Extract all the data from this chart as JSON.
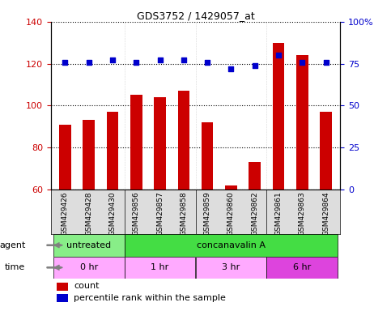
{
  "title": "GDS3752 / 1429057_at",
  "samples": [
    "GSM429426",
    "GSM429428",
    "GSM429430",
    "GSM429856",
    "GSM429857",
    "GSM429858",
    "GSM429859",
    "GSM429860",
    "GSM429862",
    "GSM429861",
    "GSM429863",
    "GSM429864"
  ],
  "counts": [
    91,
    93,
    97,
    105,
    104,
    107,
    92,
    62,
    73,
    130,
    124,
    97
  ],
  "percentiles": [
    76,
    76,
    77,
    76,
    77,
    77,
    76,
    72,
    74,
    80,
    76,
    76
  ],
  "bar_color": "#cc0000",
  "dot_color": "#0000cc",
  "ylim_left": [
    60,
    140
  ],
  "ylim_right": [
    0,
    100
  ],
  "yticks_left": [
    60,
    80,
    100,
    120,
    140
  ],
  "yticks_right": [
    0,
    25,
    50,
    75,
    100
  ],
  "agent_groups": [
    {
      "label": "untreated",
      "start": 0,
      "end": 3,
      "color": "#88ee88"
    },
    {
      "label": "concanavalin A",
      "start": 3,
      "end": 12,
      "color": "#44dd44"
    }
  ],
  "time_groups": [
    {
      "label": "0 hr",
      "start": 0,
      "end": 3,
      "color": "#ffaaff"
    },
    {
      "label": "1 hr",
      "start": 3,
      "end": 6,
      "color": "#ffaaff"
    },
    {
      "label": "3 hr",
      "start": 6,
      "end": 9,
      "color": "#ffaaff"
    },
    {
      "label": "6 hr",
      "start": 9,
      "end": 12,
      "color": "#dd44dd"
    }
  ],
  "legend_count_color": "#cc0000",
  "legend_pct_color": "#0000cc",
  "grid_color": "#000000",
  "background_color": "#ffffff",
  "bar_width": 0.5,
  "plot_bg": "#ffffff",
  "tick_label_bg": "#dddddd"
}
